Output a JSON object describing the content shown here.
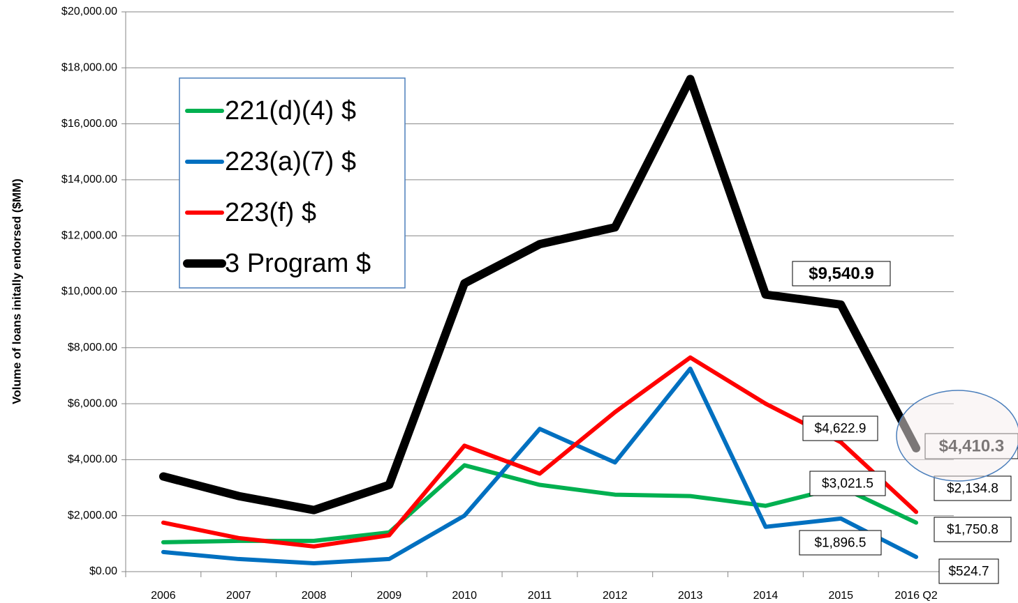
{
  "chart_data": {
    "type": "line",
    "y_axis_label": "Volume of loans initally endorsed ($MM)",
    "categories": [
      "2006",
      "2007",
      "2008",
      "2009",
      "2010",
      "2011",
      "2012",
      "2013",
      "2014",
      "2015",
      "2016 Q2"
    ],
    "series": [
      {
        "name": "221(d)(4) $",
        "color": "#00b050",
        "values": [
          1050,
          1100,
          1100,
          1400,
          3800,
          3100,
          2750,
          2700,
          2350,
          3021.5,
          1750.8
        ],
        "value_labels": [
          null,
          null,
          null,
          null,
          null,
          null,
          null,
          null,
          null,
          "$3,021.5",
          "$1,750.8"
        ]
      },
      {
        "name": "223(a)(7) $",
        "color": "#0070c0",
        "values": [
          700,
          450,
          300,
          450,
          2000,
          5100,
          3900,
          7250,
          1600,
          1896.5,
          524.7
        ],
        "value_labels": [
          null,
          null,
          null,
          null,
          null,
          null,
          null,
          null,
          null,
          "$1,896.5",
          "$524.7"
        ]
      },
      {
        "name": "223(f) $",
        "color": "#ff0000",
        "values": [
          1750,
          1200,
          900,
          1300,
          4500,
          3500,
          5700,
          7650,
          6000,
          4622.9,
          2134.8
        ],
        "value_labels": [
          null,
          null,
          null,
          null,
          null,
          null,
          null,
          null,
          null,
          "$4,622.9",
          "$2,134.8"
        ]
      },
      {
        "name": "3 Program $",
        "color": "#000000",
        "values": [
          3400,
          2700,
          2200,
          3100,
          10300,
          11700,
          12300,
          17600,
          9900,
          9540.9,
          4410.3
        ],
        "value_labels": [
          null,
          null,
          null,
          null,
          null,
          null,
          null,
          null,
          null,
          "$9,540.9",
          "$4,410.3"
        ]
      }
    ],
    "ylim": [
      0,
      20000
    ],
    "yticks": [
      {
        "value": 0,
        "label": "$0.00"
      },
      {
        "value": 2000,
        "label": "$2,000.00"
      },
      {
        "value": 4000,
        "label": "$4,000.00"
      },
      {
        "value": 6000,
        "label": "$6,000.00"
      },
      {
        "value": 8000,
        "label": "$8,000.00"
      },
      {
        "value": 10000,
        "label": "$10,000.00"
      },
      {
        "value": 12000,
        "label": "$12,000.00"
      },
      {
        "value": 14000,
        "label": "$14,000.00"
      },
      {
        "value": 16000,
        "label": "$16,000.00"
      },
      {
        "value": 18000,
        "label": "$18,000.00"
      },
      {
        "value": 20000,
        "label": "$20,000.00"
      }
    ],
    "grid": true
  }
}
